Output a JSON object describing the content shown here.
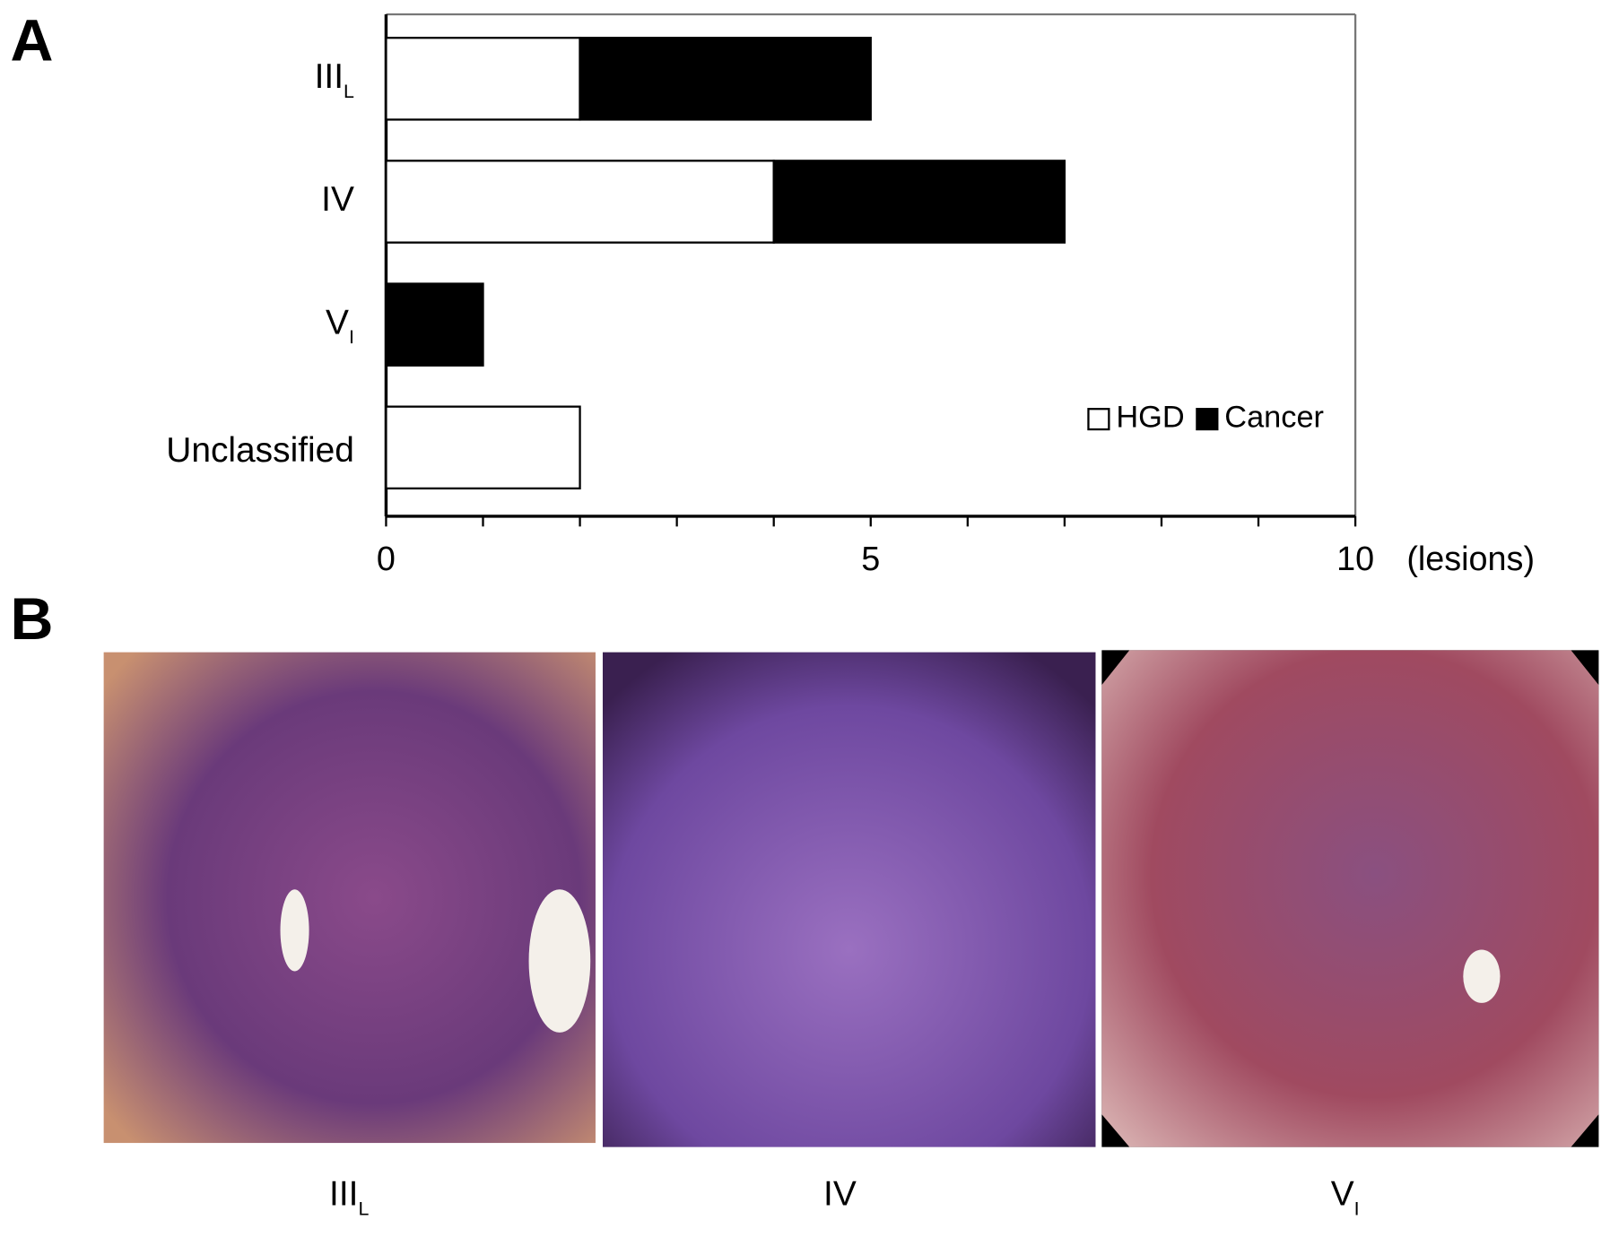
{
  "chart_data": {
    "type": "hbar_stacked",
    "panel_label": "A",
    "categories": [
      {
        "label": "III",
        "sub": "L"
      },
      {
        "label": "IV"
      },
      {
        "label": "V",
        "sub": "I"
      },
      {
        "label": "Unclassified"
      }
    ],
    "series": [
      {
        "name": "HGD",
        "color": "#ffffff",
        "values": [
          2,
          4,
          0,
          2
        ]
      },
      {
        "name": "Cancer",
        "color": "#000000",
        "values": [
          3,
          3,
          1,
          0
        ]
      }
    ],
    "xlim": [
      0,
      10
    ],
    "xticks": [
      0,
      5,
      10
    ],
    "minor_xticks": [
      1,
      2,
      3,
      4,
      6,
      7,
      8,
      9
    ],
    "x_unit": "(lesions)",
    "legend": "lower-right"
  },
  "panel_b": {
    "panel_label": "B",
    "images": [
      {
        "caption": "III",
        "sub": "L"
      },
      {
        "caption": "IV"
      },
      {
        "caption": "V",
        "sub": "I"
      }
    ]
  }
}
